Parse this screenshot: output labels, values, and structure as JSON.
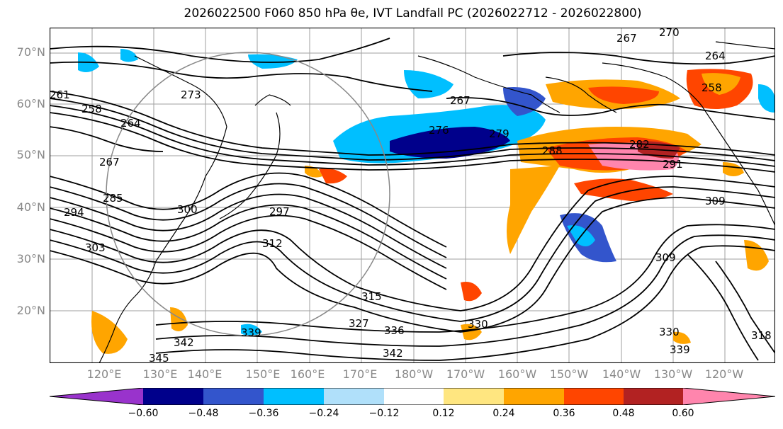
{
  "title": "2026022500 F060 850 hPa θe, IVT Landfall PC (2026022712 - 2026022800)",
  "map": {
    "lat_labels": [
      "70°N",
      "60°N",
      "50°N",
      "40°N",
      "30°N",
      "20°N"
    ],
    "lon_labels": [
      "120°E",
      "130°E",
      "140°E",
      "150°E",
      "160°E",
      "170°E",
      "180°W",
      "170°W",
      "160°W",
      "150°W",
      "140°W",
      "130°W",
      "120°W"
    ],
    "contour_labels": [
      "270",
      "267",
      "264",
      "258",
      "273",
      "261",
      "258",
      "264",
      "267",
      "276",
      "267",
      "279",
      "288",
      "282",
      "291",
      "294",
      "285",
      "300",
      "297",
      "303",
      "312",
      "315",
      "327",
      "336",
      "330",
      "339",
      "345",
      "342",
      "342",
      "339",
      "330",
      "318",
      "309",
      "309"
    ],
    "colors": {
      "contour": "#000000",
      "coastline": "#000000",
      "gridline": "#888888",
      "circle": "#888888"
    }
  },
  "colorbar": {
    "tick_labels": [
      "−0.60",
      "−0.48",
      "−0.36",
      "−0.24",
      "−0.12",
      "0.12",
      "0.24",
      "0.36",
      "0.48",
      "0.60"
    ],
    "colors": [
      "#9933cc",
      "#00008b",
      "#3355cc",
      "#00bfff",
      "#b0e0fa",
      "#ffffff",
      "#ffe680",
      "#ffa500",
      "#ff4500",
      "#b22222",
      "#ff85ad"
    ]
  }
}
